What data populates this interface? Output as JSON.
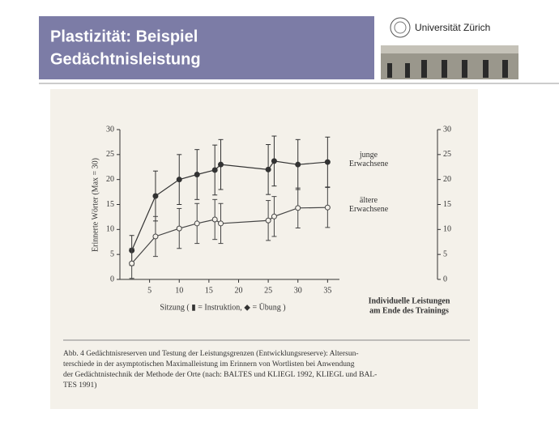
{
  "slide": {
    "title_lines": [
      "Plastizität: Beispiel",
      "Gedächtnisleistung"
    ],
    "logo": "Universität Zürich"
  },
  "chart_data": {
    "type": "line",
    "ylabel": "Erinnerte Wörter (Max = 30)",
    "xlabel": "Sitzung ( ▮ = Instruktion, ◆ = Übung )",
    "x": [
      2,
      6,
      10,
      13,
      16,
      17,
      25,
      26,
      30,
      35
    ],
    "series": [
      {
        "name": "junge Erwachsene",
        "color": "#333333",
        "marker": "filled",
        "values": [
          5.8,
          16.7,
          20,
          21,
          21.9,
          23,
          22,
          23.7,
          23,
          23.5
        ],
        "errors": [
          3,
          5,
          5,
          5,
          5,
          5,
          5,
          5,
          5,
          5
        ]
      },
      {
        "name": "ältere Erwachsene",
        "color": "#444444",
        "marker": "open",
        "values": [
          3.2,
          8.6,
          10.2,
          11.2,
          12,
          11.2,
          11.8,
          12.6,
          14.3,
          14.4
        ],
        "errors": [
          3,
          4,
          4,
          4,
          4,
          4,
          4,
          4,
          4,
          4
        ]
      }
    ],
    "xlim": [
      0,
      37
    ],
    "xticks": [
      5,
      10,
      15,
      20,
      25,
      30,
      35
    ],
    "ylim": [
      0,
      30
    ],
    "yticks": [
      0,
      5,
      10,
      15,
      20,
      25,
      30
    ],
    "y2lim": [
      0,
      30
    ],
    "y2ticks": [
      0,
      5,
      10,
      15,
      20,
      25,
      30
    ],
    "annotation_lines": [
      "Individuelle Leistungen",
      "am Ende des Trainings"
    ],
    "caption_lines": [
      "Abb. 4  Gedächtnisreserven und Testung der Leistungsgrenzen (Entwicklungsreserve): Altersun-",
      "terschiede in der asymptotischen Maximalleistung im Erinnern von Wortlisten bei Anwendung",
      "der Gedächtnistechnik der Methode der Orte (nach: BALTES und KLIEGL 1992, KLIEGL und BAL-",
      "TES 1991)"
    ]
  }
}
